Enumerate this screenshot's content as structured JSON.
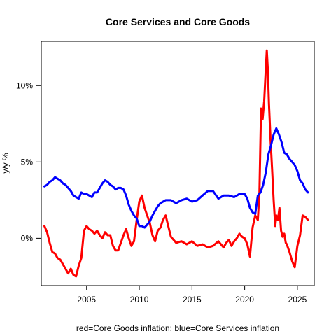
{
  "chart_data": {
    "type": "line",
    "title": "Core Services and Core Goods",
    "xlabel": "red=Core Goods inflation; blue=Core Services inflation",
    "ylabel": "y/y %",
    "xlim": [
      2000.7,
      2026.6
    ],
    "ylim": [
      -3.1,
      12.9
    ],
    "x_ticks": [
      2005,
      2010,
      2015,
      2020,
      2025
    ],
    "y_ticks": [
      0,
      5,
      10
    ],
    "x_tick_labels": [
      "2005",
      "2010",
      "2015",
      "2020",
      "2025"
    ],
    "y_tick_labels": [
      "0%",
      "5%",
      "10%"
    ],
    "grid": false,
    "series": [
      {
        "key": "core_goods",
        "color": "#ff0000",
        "x": [
          2001.0,
          2001.25,
          2001.5,
          2001.75,
          2002.0,
          2002.25,
          2002.5,
          2002.75,
          2003.0,
          2003.25,
          2003.5,
          2003.75,
          2004.0,
          2004.25,
          2004.5,
          2004.75,
          2005.0,
          2005.25,
          2005.5,
          2005.75,
          2006.0,
          2006.25,
          2006.5,
          2006.75,
          2007.0,
          2007.25,
          2007.5,
          2007.75,
          2008.0,
          2008.25,
          2008.5,
          2008.75,
          2009.0,
          2009.25,
          2009.5,
          2009.75,
          2010.0,
          2010.25,
          2010.5,
          2010.75,
          2011.0,
          2011.25,
          2011.5,
          2011.75,
          2012.0,
          2012.25,
          2012.5,
          2012.75,
          2013.0,
          2013.5,
          2014.0,
          2014.5,
          2015.0,
          2015.5,
          2016.0,
          2016.5,
          2017.0,
          2017.5,
          2018.0,
          2018.25,
          2018.5,
          2018.75,
          2019.0,
          2019.25,
          2019.5,
          2019.75,
          2020.0,
          2020.25,
          2020.5,
          2020.75,
          2021.0,
          2021.25,
          2021.4,
          2021.55,
          2021.7,
          2021.85,
          2022.0,
          2022.1,
          2022.2,
          2022.3,
          2022.45,
          2022.6,
          2022.75,
          2022.9,
          2023.0,
          2023.15,
          2023.3,
          2023.45,
          2023.6,
          2023.75,
          2023.9,
          2024.0,
          2024.25,
          2024.5,
          2024.75,
          2025.0,
          2025.25,
          2025.5,
          2025.75,
          2026.0
        ],
        "values": [
          0.8,
          0.4,
          -0.3,
          -0.9,
          -1.0,
          -1.3,
          -1.4,
          -1.7,
          -2.0,
          -2.3,
          -2.0,
          -2.4,
          -2.5,
          -1.8,
          -1.3,
          0.5,
          0.8,
          0.6,
          0.5,
          0.3,
          0.5,
          0.2,
          0.0,
          0.4,
          0.2,
          0.2,
          -0.5,
          -0.8,
          -0.8,
          -0.3,
          0.2,
          0.6,
          0.0,
          -0.5,
          -0.2,
          1.2,
          2.4,
          2.8,
          2.0,
          1.5,
          1.0,
          0.2,
          -0.2,
          0.5,
          0.7,
          1.2,
          1.5,
          0.8,
          0.1,
          -0.3,
          -0.2,
          -0.4,
          -0.2,
          -0.5,
          -0.4,
          -0.6,
          -0.5,
          -0.2,
          -0.6,
          -0.3,
          -0.1,
          -0.5,
          -0.2,
          0.0,
          0.3,
          0.1,
          0.0,
          -0.4,
          -1.2,
          0.7,
          1.5,
          1.2,
          3.0,
          8.5,
          7.8,
          9.0,
          11.0,
          12.3,
          11.0,
          8.8,
          6.5,
          4.5,
          2.5,
          0.8,
          1.5,
          1.2,
          2.0,
          0.5,
          0.1,
          0.3,
          -0.3,
          -0.4,
          -0.9,
          -1.5,
          -1.9,
          -0.5,
          0.2,
          1.5,
          1.4,
          1.2
        ]
      },
      {
        "key": "core_services",
        "color": "#0000ff",
        "x": [
          2001.0,
          2001.25,
          2001.5,
          2001.75,
          2002.0,
          2002.25,
          2002.5,
          2002.75,
          2003.0,
          2003.25,
          2003.5,
          2003.75,
          2004.0,
          2004.25,
          2004.5,
          2004.75,
          2005.0,
          2005.25,
          2005.5,
          2005.75,
          2006.0,
          2006.25,
          2006.5,
          2006.75,
          2007.0,
          2007.25,
          2007.5,
          2007.75,
          2008.0,
          2008.25,
          2008.5,
          2008.75,
          2009.0,
          2009.25,
          2009.5,
          2009.75,
          2010.0,
          2010.25,
          2010.5,
          2010.75,
          2011.0,
          2011.25,
          2011.5,
          2011.75,
          2012.0,
          2012.5,
          2013.0,
          2013.5,
          2014.0,
          2014.5,
          2015.0,
          2015.5,
          2016.0,
          2016.5,
          2017.0,
          2017.5,
          2018.0,
          2018.5,
          2019.0,
          2019.5,
          2020.0,
          2020.25,
          2020.5,
          2020.75,
          2021.0,
          2021.25,
          2021.5,
          2021.75,
          2022.0,
          2022.25,
          2022.5,
          2022.75,
          2023.0,
          2023.25,
          2023.5,
          2023.75,
          2024.0,
          2024.25,
          2024.5,
          2024.75,
          2025.0,
          2025.25,
          2025.5,
          2025.75,
          2026.0
        ],
        "values": [
          3.4,
          3.5,
          3.7,
          3.8,
          4.0,
          3.9,
          3.8,
          3.6,
          3.5,
          3.3,
          3.1,
          2.8,
          2.7,
          2.6,
          3.0,
          2.9,
          2.9,
          2.8,
          2.7,
          3.0,
          3.0,
          3.3,
          3.6,
          3.8,
          3.7,
          3.5,
          3.4,
          3.2,
          3.3,
          3.3,
          3.2,
          2.8,
          2.2,
          1.8,
          1.5,
          1.3,
          0.8,
          0.8,
          0.7,
          0.9,
          1.1,
          1.5,
          1.8,
          2.1,
          2.3,
          2.5,
          2.5,
          2.3,
          2.5,
          2.6,
          2.4,
          2.5,
          2.8,
          3.1,
          3.1,
          2.6,
          2.8,
          2.8,
          2.7,
          2.9,
          2.9,
          2.6,
          2.0,
          1.7,
          1.6,
          2.8,
          3.0,
          3.5,
          4.3,
          5.5,
          6.1,
          6.8,
          7.2,
          6.8,
          6.3,
          5.6,
          5.5,
          5.2,
          5.0,
          4.8,
          4.4,
          3.8,
          3.6,
          3.2,
          3.0
        ]
      }
    ]
  }
}
